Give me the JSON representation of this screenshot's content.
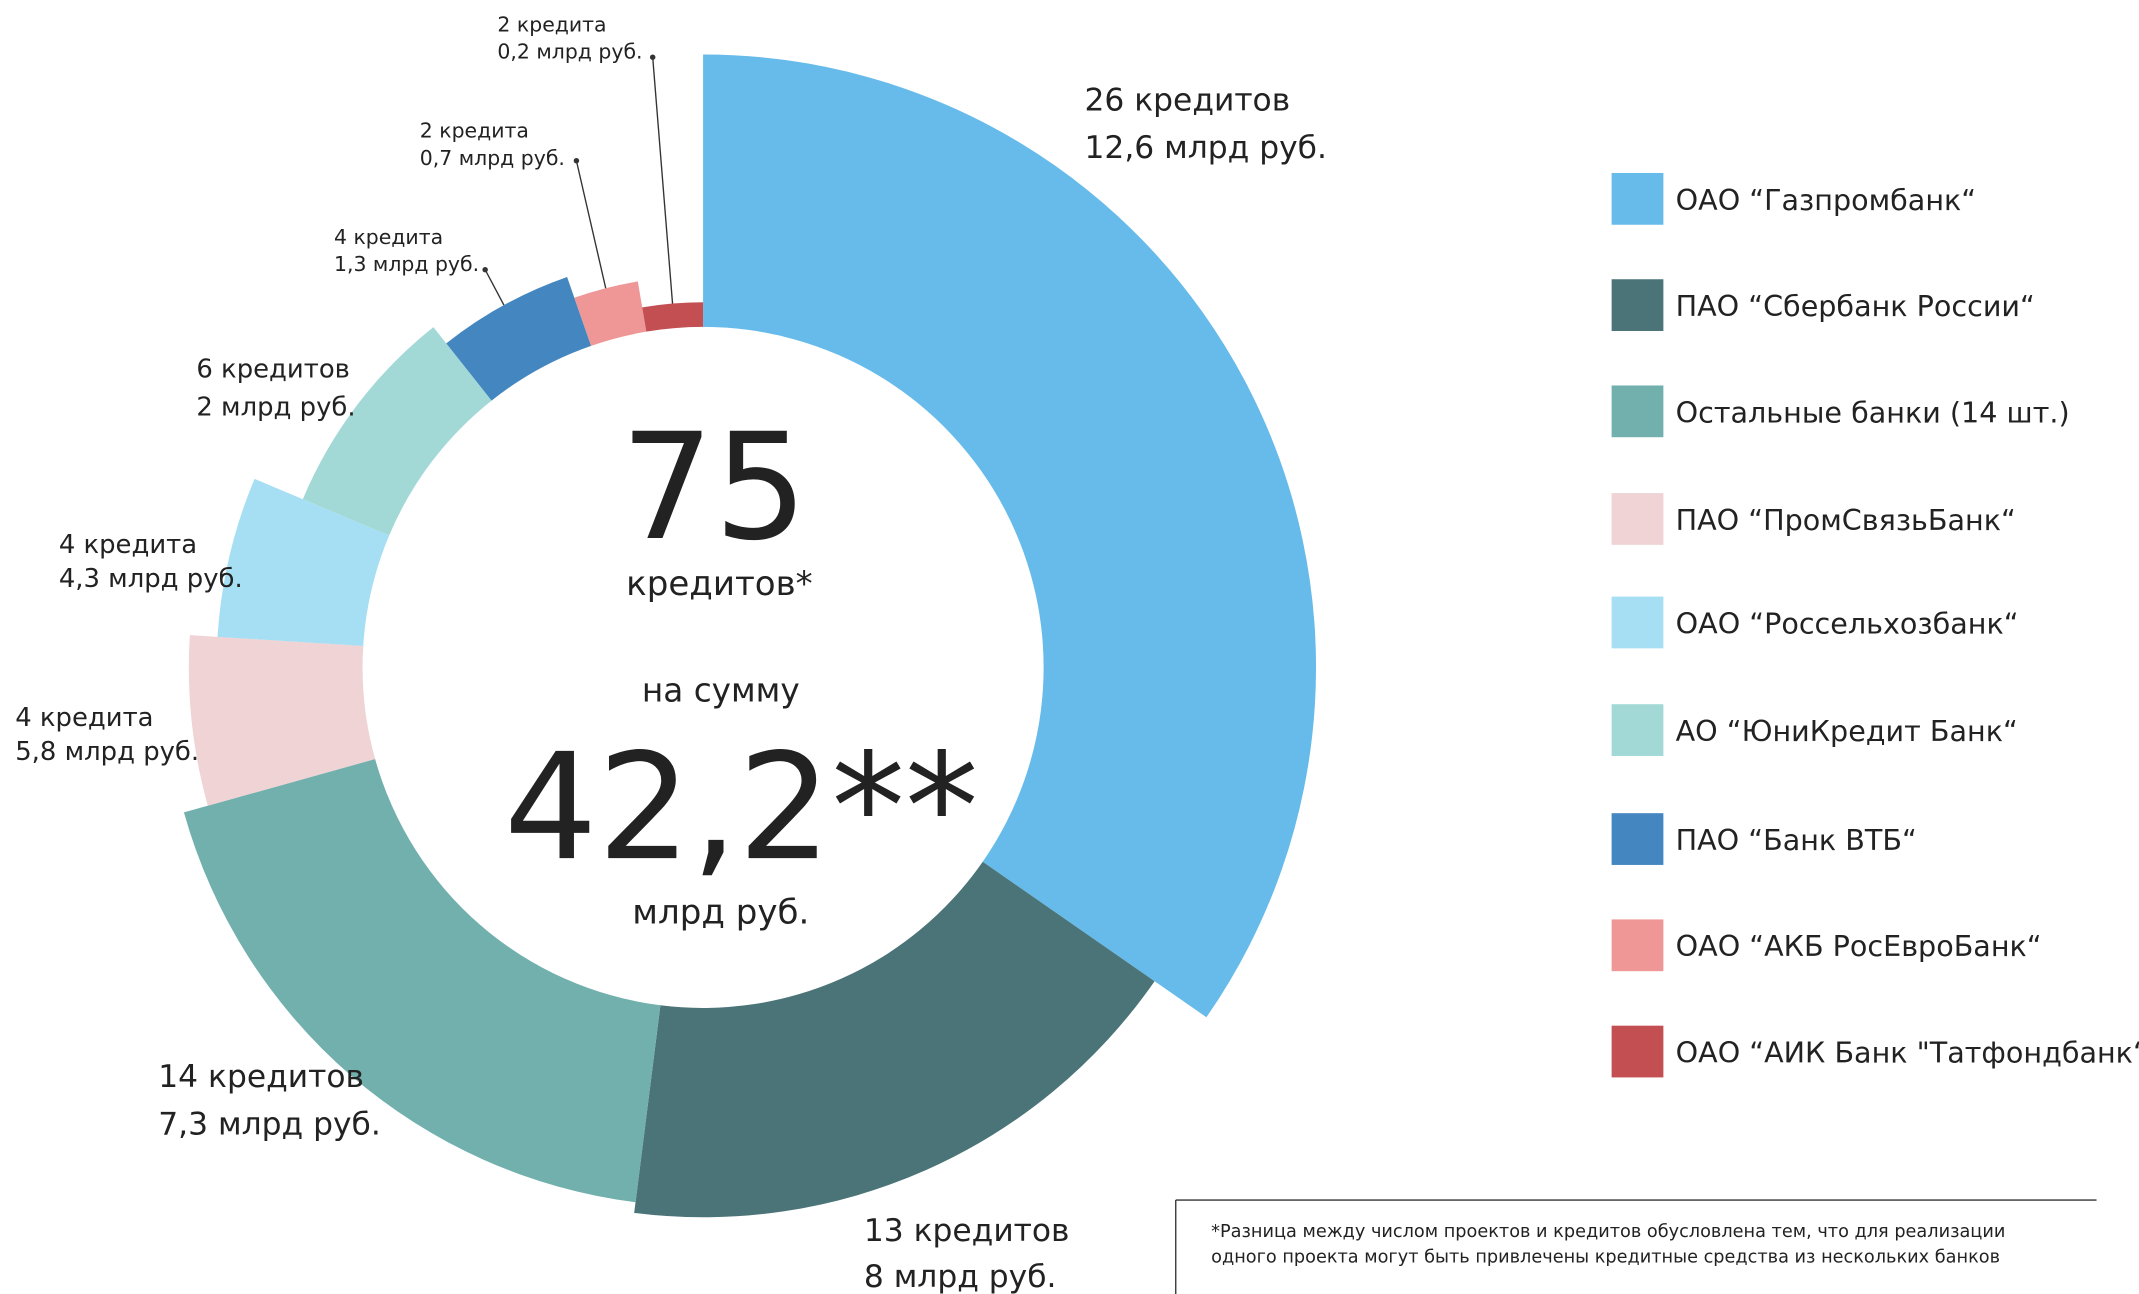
{
  "chart_data": {
    "type": "pie",
    "categories": [
      "ОАО “Газпромбанк“",
      "ПАО “Сбербанк России“",
      "Остальные банки (14 шт.)",
      "ПАО “ПромСвязьБанк“",
      "ОАО “Россельхозбанк“",
      "АО “ЮниКредит Банк“",
      "ПАО “Банк ВТБ“",
      "ОАО “АКБ РосЕвроБанк“",
      "ОАО “АИК Банк \"Татфондбанк“"
    ],
    "values": [
      26,
      13,
      14,
      4,
      4,
      6,
      4,
      2,
      2
    ],
    "value_labels": [
      "26 кредитов",
      "13 кредитов",
      "14 кредитов",
      "4 кредита",
      "4 кредита",
      "6 кредитов",
      "4 кредита",
      "2 кредита",
      "2 кредита"
    ],
    "sums": [
      12.6,
      8,
      7.3,
      5.8,
      4.3,
      2,
      1.3,
      0.7,
      0.2
    ],
    "sum_labels": [
      "12,6 млрд руб.",
      "8 млрд руб.",
      "7,3 млрд руб.",
      "5,8 млрд руб.",
      "4,3 млрд руб.",
      "2 млрд руб.",
      "1,3 млрд руб.",
      "0,7 млрд руб.",
      "0,2 млрд руб."
    ],
    "colors": [
      "#67bbea",
      "#4b7478",
      "#72b0ae",
      "#efd3d5",
      "#a6dff3",
      "#a2d9d7",
      "#4487c0",
      "#ee9796",
      "#c44f52"
    ],
    "center": [
      "75",
      "кредитов*",
      "на сумму",
      "42,2**",
      "млрд руб."
    ],
    "footnote": [
      "*Разница между числом проектов и кредитов обусловлена тем, что для реализации",
      "одного проекта могут быть привлечены кредитные средства из нескольких банков"
    ]
  }
}
